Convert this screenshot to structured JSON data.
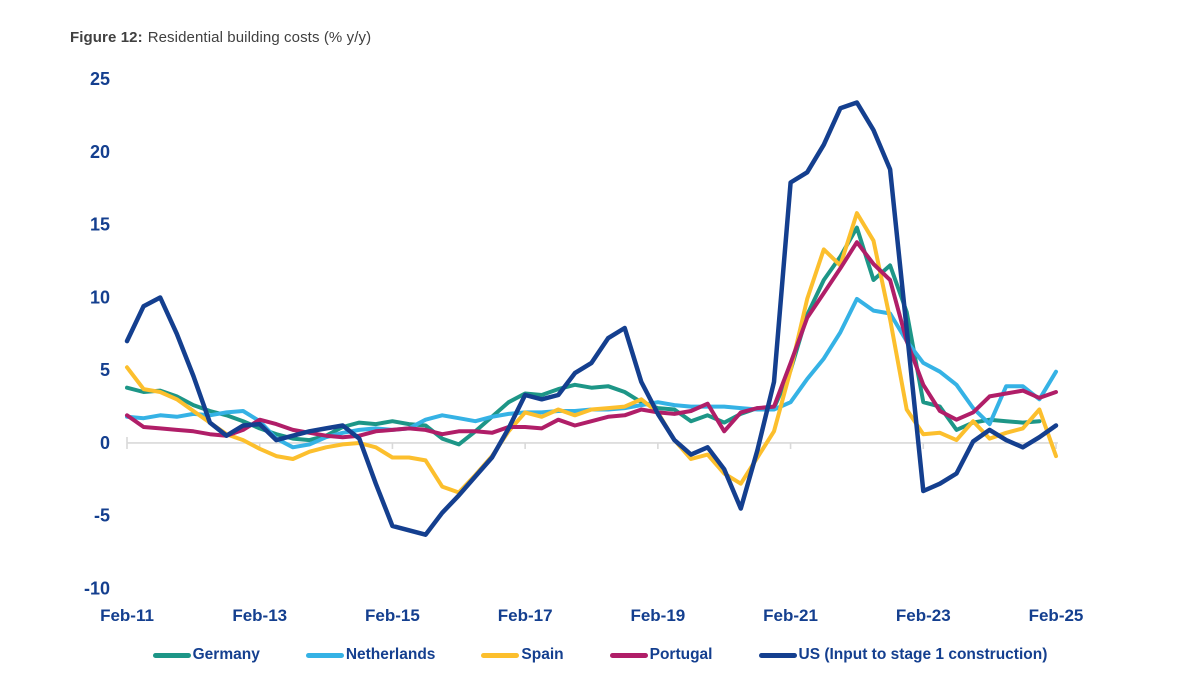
{
  "title": {
    "prefix": "Figure 12:",
    "text": "Residential building costs (% y/y)"
  },
  "colors": {
    "axis_text": "#143f8f",
    "title_text": "#404040",
    "zero_line": "#d9d9d9",
    "background": "#ffffff"
  },
  "chart_data": {
    "type": "line",
    "title": "Figure 12: Residential building costs (% y/y)",
    "ylabel": "% y/y",
    "xlabel": "",
    "x_frequency": "quarterly",
    "n_points": 57,
    "x_start_label": "Feb-11",
    "x_end_label": "Feb-25",
    "x_tick_labels": [
      "Feb-11",
      "Feb-13",
      "Feb-15",
      "Feb-17",
      "Feb-19",
      "Feb-21",
      "Feb-23",
      "Feb-25"
    ],
    "x_tick_indices": [
      0,
      8,
      16,
      24,
      32,
      40,
      48,
      56
    ],
    "y_ticks": [
      25,
      20,
      15,
      10,
      5,
      0,
      -5,
      -10
    ],
    "ylim": [
      -10,
      25
    ],
    "grid": "zero-line-only",
    "legend_position": "bottom",
    "series": [
      {
        "name": "Germany",
        "color": "#1d9687",
        "width": 4,
        "values": [
          3.8,
          3.5,
          3.6,
          3.2,
          2.6,
          2.2,
          1.9,
          1.5,
          1.0,
          0.6,
          0.3,
          0.2,
          0.5,
          1.1,
          1.4,
          1.3,
          1.5,
          1.3,
          1.2,
          0.3,
          -0.1,
          0.8,
          1.8,
          2.8,
          3.4,
          3.3,
          3.7,
          4.0,
          3.8,
          3.9,
          3.5,
          2.8,
          2.4,
          2.3,
          1.5,
          1.9,
          1.4,
          2.0,
          2.4,
          2.4,
          5.0,
          8.8,
          11.2,
          12.8,
          14.8,
          11.2,
          12.2,
          9.0,
          2.8,
          2.5,
          0.9,
          1.4,
          1.6,
          1.5,
          1.4,
          1.5,
          null
        ]
      },
      {
        "name": "Netherlands",
        "color": "#35b2e5",
        "width": 4,
        "values": [
          1.8,
          1.7,
          1.9,
          1.8,
          2.0,
          1.9,
          2.1,
          2.2,
          1.5,
          0.3,
          -0.3,
          -0.1,
          0.4,
          0.7,
          0.9,
          1.0,
          0.9,
          1.0,
          1.6,
          1.9,
          1.7,
          1.5,
          1.8,
          2.0,
          2.1,
          2.1,
          2.2,
          2.2,
          2.3,
          2.3,
          2.4,
          2.6,
          2.8,
          2.6,
          2.5,
          2.5,
          2.5,
          2.4,
          2.3,
          2.3,
          2.8,
          4.4,
          5.8,
          7.6,
          9.9,
          9.1,
          8.9,
          7.0,
          5.5,
          4.9,
          4.0,
          2.4,
          1.3,
          3.9,
          3.9,
          3.0,
          4.9
        ]
      },
      {
        "name": "Spain",
        "color": "#fcbf2d",
        "width": 4,
        "values": [
          5.2,
          3.7,
          3.5,
          3.0,
          2.2,
          1.4,
          0.6,
          0.2,
          -0.4,
          -0.9,
          -1.1,
          -0.6,
          -0.3,
          -0.1,
          0.0,
          -0.3,
          -1.0,
          -1.0,
          -1.2,
          -3.0,
          -3.4,
          -2.2,
          -0.9,
          0.8,
          2.1,
          1.8,
          2.3,
          1.9,
          2.3,
          2.4,
          2.5,
          3.0,
          2.1,
          0.2,
          -1.1,
          -0.8,
          -2.1,
          -2.8,
          -1.0,
          0.8,
          5.0,
          9.9,
          13.3,
          12.2,
          15.8,
          13.9,
          8.5,
          2.3,
          0.6,
          0.7,
          0.2,
          1.5,
          0.3,
          0.7,
          1.0,
          2.3,
          -0.9
        ]
      },
      {
        "name": "Portugal",
        "color": "#b01e68",
        "width": 4,
        "values": [
          1.9,
          1.1,
          1.0,
          0.9,
          0.8,
          0.6,
          0.5,
          0.9,
          1.6,
          1.3,
          0.9,
          0.7,
          0.5,
          0.4,
          0.5,
          0.8,
          0.9,
          1.0,
          0.9,
          0.6,
          0.8,
          0.8,
          0.7,
          1.1,
          1.1,
          1.0,
          1.6,
          1.2,
          1.5,
          1.8,
          1.9,
          2.3,
          2.1,
          2.0,
          2.2,
          2.7,
          0.8,
          2.1,
          2.4,
          2.5,
          5.5,
          8.6,
          10.3,
          12.0,
          13.8,
          12.3,
          11.2,
          7.0,
          4.0,
          2.2,
          1.6,
          2.1,
          3.2,
          3.4,
          3.6,
          3.1,
          3.5
        ]
      },
      {
        "name": "US (Input to stage 1 construction)",
        "color": "#143f8f",
        "width": 4.5,
        "values": [
          7.0,
          9.4,
          10.0,
          7.5,
          4.6,
          1.4,
          0.5,
          1.2,
          1.3,
          0.2,
          0.5,
          0.8,
          1.0,
          1.2,
          0.3,
          -2.8,
          -5.7,
          -6.0,
          -6.3,
          -4.8,
          -3.6,
          -2.3,
          -1.0,
          1.0,
          3.3,
          3.0,
          3.3,
          4.8,
          5.5,
          7.2,
          7.9,
          4.2,
          2.0,
          0.2,
          -0.8,
          -0.3,
          -1.8,
          -4.5,
          -0.5,
          4.2,
          17.9,
          18.6,
          20.5,
          23.0,
          23.4,
          21.5,
          18.8,
          7.8,
          -3.3,
          -2.8,
          -2.1,
          0.1,
          0.9,
          0.2,
          -0.3,
          0.4,
          1.2
        ]
      }
    ]
  }
}
